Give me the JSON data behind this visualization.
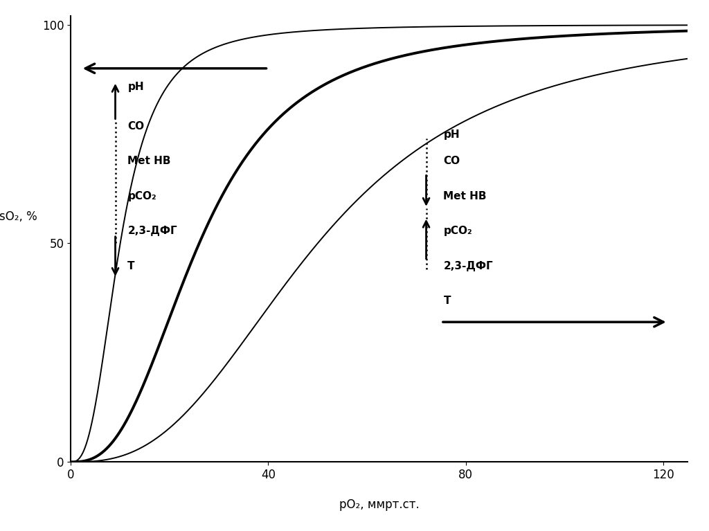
{
  "xlabel": "pO₂, ммрт.ст.",
  "ylabel": "sO₂, %",
  "xlim": [
    0,
    125
  ],
  "ylim": [
    0,
    102
  ],
  "xticks": [
    0,
    40,
    80,
    120
  ],
  "yticks": [
    0,
    50,
    100
  ],
  "curve_p50_values": [
    10,
    26,
    50
  ],
  "hill_n": 2.7,
  "background_color": "#ffffff",
  "curve_color": "#000000",
  "curve_linewidths": [
    1.4,
    2.8,
    1.4
  ],
  "annotation_fontsize": 11,
  "tick_fontsize": 12,
  "label_fontsize": 12
}
